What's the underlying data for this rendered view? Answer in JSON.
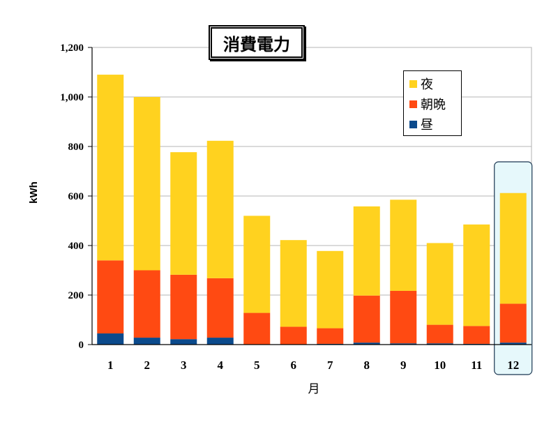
{
  "chart_data": {
    "type": "bar",
    "stacked": true,
    "title": "消費電力",
    "xlabel": "月",
    "ylabel": "kWh",
    "ylim": [
      0,
      1200
    ],
    "yticks": [
      "0",
      "200",
      "400",
      "600",
      "800",
      "1,000",
      "1,200"
    ],
    "ytick_values": [
      0,
      200,
      400,
      600,
      800,
      1000,
      1200
    ],
    "categories": [
      "1",
      "2",
      "3",
      "4",
      "5",
      "6",
      "7",
      "8",
      "9",
      "10",
      "11",
      "12"
    ],
    "highlighted_category": "12",
    "grid": true,
    "legend_position": "top-right",
    "series": [
      {
        "name": "昼",
        "color": "#0B4A8C",
        "values": [
          45,
          28,
          22,
          28,
          0,
          0,
          3,
          8,
          5,
          5,
          3,
          8
        ]
      },
      {
        "name": "朝晩",
        "color": "#FF4A12",
        "values": [
          295,
          272,
          260,
          240,
          128,
          72,
          63,
          190,
          212,
          75,
          72,
          157
        ]
      },
      {
        "name": "夜",
        "color": "#FFD21F",
        "values": [
          750,
          700,
          495,
          555,
          392,
          350,
          312,
          360,
          368,
          330,
          410,
          447
        ]
      }
    ]
  }
}
